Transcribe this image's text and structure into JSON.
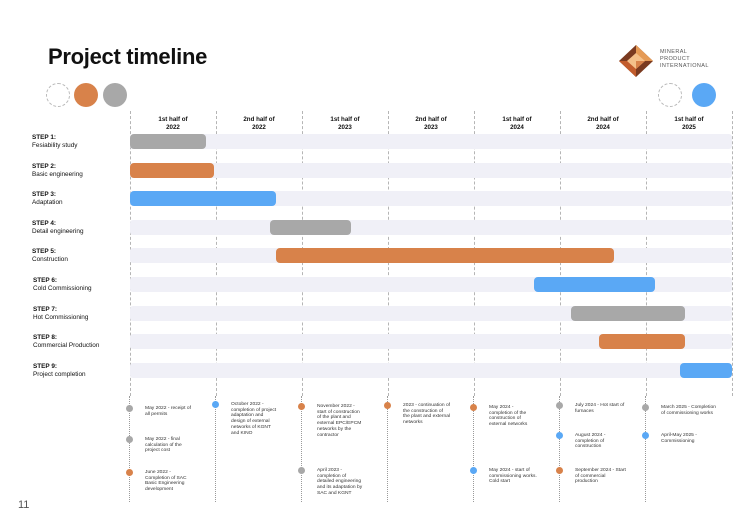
{
  "header": {
    "title": "Project timeline",
    "logo_text": [
      "MINERAL",
      "PRODUCT",
      "INTERNATIONAL"
    ]
  },
  "colors": {
    "gray": "#a8a8a8",
    "orange": "#d8824a",
    "blue": "#5aa8f5",
    "track": "#f0f0f7"
  },
  "periods": [
    {
      "line1": "1st half of",
      "line2": "2022"
    },
    {
      "line1": "2nd half of",
      "line2": "2022"
    },
    {
      "line1": "1st half of",
      "line2": "2023"
    },
    {
      "line1": "2nd half of",
      "line2": "2023"
    },
    {
      "line1": "1st half of",
      "line2": "2024"
    },
    {
      "line1": "2nd half of",
      "line2": "2024"
    },
    {
      "line1": "1st half of",
      "line2": "2025"
    }
  ],
  "steps": [
    {
      "step": "STEP 1:",
      "name": "Fesiability study",
      "start": 0.0,
      "end": 0.88,
      "color": "gray"
    },
    {
      "step": "STEP 2:",
      "name": "Basic engineering",
      "start": 0.0,
      "end": 0.98,
      "color": "orange"
    },
    {
      "step": "STEP 3:",
      "name": "Adaptation",
      "start": 0.0,
      "end": 1.7,
      "color": "blue"
    },
    {
      "step": "STEP 4:",
      "name": "Detail engineering",
      "start": 1.63,
      "end": 2.57,
      "color": "gray"
    },
    {
      "step": "STEP 5:",
      "name": "Construction",
      "start": 1.7,
      "end": 5.63,
      "color": "orange"
    },
    {
      "step": "STEP 6:",
      "name": "Cold Commissioning",
      "start": 4.7,
      "end": 6.1,
      "color": "blue"
    },
    {
      "step": "STEP 7:",
      "name": "Hot Commissioning",
      "start": 5.13,
      "end": 6.45,
      "color": "gray"
    },
    {
      "step": "STEP 8:",
      "name": "Commercial Production",
      "start": 5.45,
      "end": 6.45,
      "color": "orange"
    },
    {
      "step": "STEP 9:",
      "name": "Project completion",
      "start": 6.4,
      "end": 7.0,
      "color": "blue"
    }
  ],
  "milestones": [
    {
      "col": 0,
      "color": "gray",
      "lines": [
        "May 2022 - receipt of",
        "all permits"
      ]
    },
    {
      "col": 0,
      "color": "gray",
      "lines": [
        "May 2022 - final",
        "calculation of the",
        "project cost"
      ]
    },
    {
      "col": 0,
      "color": "orange",
      "lines": [
        "June 2022 -",
        "Completion of SAC",
        "Basic Engineering",
        "development"
      ]
    },
    {
      "col": 1,
      "color": "blue",
      "lines": [
        "October 2022 -",
        "completion of project",
        "adaptation and",
        "design of external",
        "networks of KGNT",
        "and KINO"
      ]
    },
    {
      "col": 2,
      "color": "orange",
      "lines": [
        "November 2022 -",
        "start of construction",
        "of the plant and",
        "external EPC/EPCM",
        "networks by the",
        "contractor"
      ]
    },
    {
      "col": 2,
      "color": "gray",
      "lines": [
        "April 2023 -",
        "completion of",
        "detailed engineering",
        "and its adaptation by",
        "SAC and KGNT"
      ]
    },
    {
      "col": 3,
      "color": "orange",
      "lines": [
        "2023 - continuation of",
        "the construction of",
        "the plant and external",
        "networks"
      ]
    },
    {
      "col": 4,
      "color": "orange",
      "lines": [
        "May 2024 -",
        "completion of the",
        "construction of",
        "external networks"
      ]
    },
    {
      "col": 4,
      "color": "blue",
      "lines": [
        "May 2024 - start of",
        "commissioning works.",
        "Cold start"
      ]
    },
    {
      "col": 5,
      "color": "gray",
      "lines": [
        "July 2024 - Hot start of",
        "furnaces"
      ]
    },
    {
      "col": 5,
      "color": "blue",
      "lines": [
        "August 2024 -",
        "completion of",
        "construction"
      ]
    },
    {
      "col": 5,
      "color": "orange",
      "lines": [
        "September 2024 - Start",
        "of commercial",
        "production"
      ]
    },
    {
      "col": 6,
      "color": "gray",
      "lines": [
        "March 2025 - Completion",
        "of commissioning works"
      ]
    },
    {
      "col": 6,
      "color": "blue",
      "lines": [
        "April-May 2025 -",
        "Commissioning"
      ]
    }
  ],
  "page_number": "11"
}
